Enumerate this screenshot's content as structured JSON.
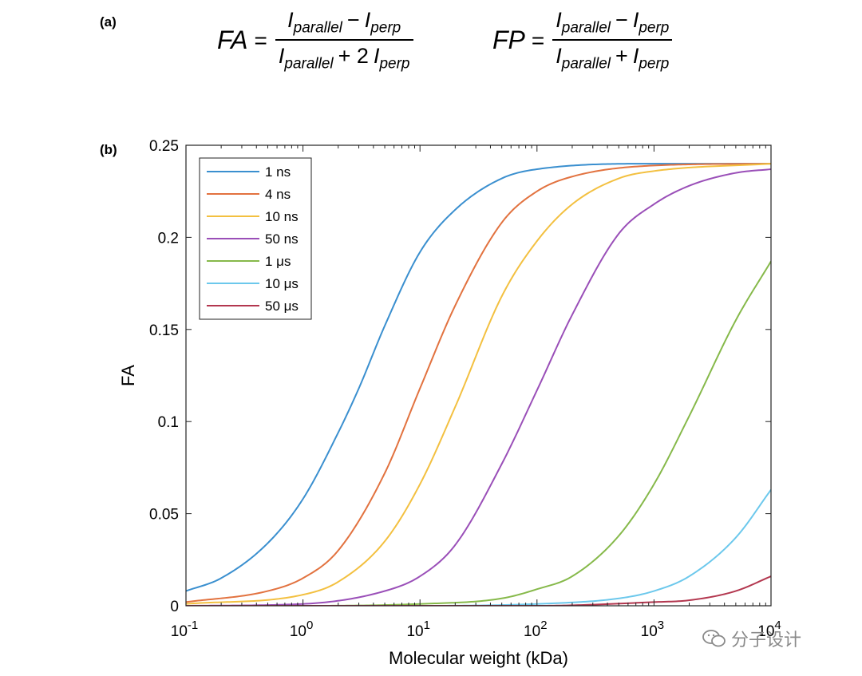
{
  "panels": {
    "a": "(a)",
    "b": "(b)"
  },
  "formulas": {
    "fa": {
      "lhs": "FA",
      "eq": "=",
      "num_i1": "I",
      "num_s1": "parallel",
      "num_op": "−",
      "num_i2": "I",
      "num_s2": "perp",
      "den_i1": "I",
      "den_s1": "parallel",
      "den_op": "+ 2",
      "den_i2": "I",
      "den_s2": "perp"
    },
    "fp": {
      "lhs": "FP",
      "eq": "=",
      "num_i1": "I",
      "num_s1": "parallel",
      "num_op": "−",
      "num_i2": "I",
      "num_s2": "perp",
      "den_i1": "I",
      "den_s1": "parallel",
      "den_op": "+",
      "den_i2": "I",
      "den_s2": "perp"
    }
  },
  "watermark": "分子设计",
  "chart_data": {
    "type": "line",
    "xlabel": "Molecular weight (kDa)",
    "ylabel": "FA",
    "x_scale": "log",
    "xlim": [
      0.1,
      10000
    ],
    "ylim": [
      0,
      0.25
    ],
    "x_ticks": [
      {
        "value": 0.1,
        "base": "10",
        "exp": "-1"
      },
      {
        "value": 1,
        "base": "10",
        "exp": "0"
      },
      {
        "value": 10,
        "base": "10",
        "exp": "1"
      },
      {
        "value": 100,
        "base": "10",
        "exp": "2"
      },
      {
        "value": 1000,
        "base": "10",
        "exp": "3"
      },
      {
        "value": 10000,
        "base": "10",
        "exp": "4"
      }
    ],
    "y_ticks": [
      {
        "value": 0,
        "label": "0"
      },
      {
        "value": 0.05,
        "label": "0.05"
      },
      {
        "value": 0.1,
        "label": "0.1"
      },
      {
        "value": 0.15,
        "label": "0.15"
      },
      {
        "value": 0.2,
        "label": "0.2"
      },
      {
        "value": 0.25,
        "label": "0.25"
      }
    ],
    "grid": false,
    "legend_position": "top-left",
    "series": [
      {
        "name": "1 ns",
        "color": "#3a8fcf",
        "x": [
          0.1,
          0.2,
          0.5,
          1,
          2,
          3,
          5,
          10,
          20,
          50,
          100,
          1000,
          10000
        ],
        "y": [
          0.008,
          0.015,
          0.034,
          0.058,
          0.094,
          0.118,
          0.152,
          0.192,
          0.215,
          0.232,
          0.237,
          0.24,
          0.24
        ]
      },
      {
        "name": "4 ns",
        "color": "#e2723f",
        "x": [
          0.1,
          0.5,
          1,
          2,
          5,
          10,
          20,
          50,
          100,
          200,
          1000,
          10000
        ],
        "y": [
          0.002,
          0.008,
          0.015,
          0.03,
          0.072,
          0.118,
          0.163,
          0.208,
          0.225,
          0.233,
          0.239,
          0.24
        ]
      },
      {
        "name": "10 ns",
        "color": "#f3c040",
        "x": [
          0.1,
          1,
          2,
          5,
          10,
          20,
          50,
          100,
          200,
          500,
          1000,
          10000
        ],
        "y": [
          0.001,
          0.006,
          0.013,
          0.035,
          0.066,
          0.108,
          0.168,
          0.198,
          0.218,
          0.232,
          0.236,
          0.24
        ]
      },
      {
        "name": "50 ns",
        "color": "#9a4fb8",
        "x": [
          0.1,
          1,
          5,
          10,
          20,
          50,
          100,
          200,
          500,
          1000,
          2000,
          5000,
          10000
        ],
        "y": [
          0.0,
          0.001,
          0.008,
          0.016,
          0.033,
          0.077,
          0.117,
          0.158,
          0.202,
          0.218,
          0.228,
          0.235,
          0.237
        ]
      },
      {
        "name": "1 μs",
        "color": "#86b94a",
        "x": [
          0.1,
          1,
          10,
          50,
          100,
          200,
          500,
          1000,
          2000,
          5000,
          10000
        ],
        "y": [
          0.0,
          0.0,
          0.001,
          0.004,
          0.009,
          0.016,
          0.038,
          0.066,
          0.103,
          0.155,
          0.187
        ]
      },
      {
        "name": "10 μs",
        "color": "#6cc8ec",
        "x": [
          0.1,
          10,
          100,
          500,
          1000,
          2000,
          5000,
          10000
        ],
        "y": [
          0.0,
          0.0,
          0.001,
          0.004,
          0.008,
          0.016,
          0.037,
          0.063
        ]
      },
      {
        "name": "50 μs",
        "color": "#b3374f",
        "x": [
          0.1,
          10,
          100,
          1000,
          2000,
          5000,
          10000
        ],
        "y": [
          0.0,
          0.0,
          0.0,
          0.002,
          0.003,
          0.008,
          0.016
        ]
      }
    ]
  }
}
